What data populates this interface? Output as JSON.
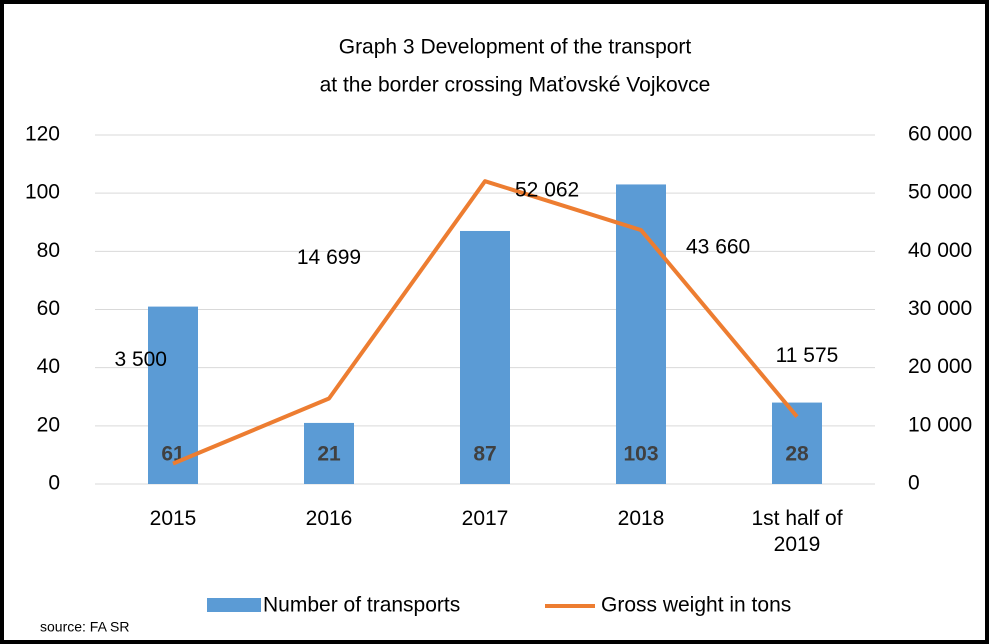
{
  "chart_data": {
    "type": "bar-line",
    "title": [
      "Graph  3 Development of the transport",
      "at the border crossing  Maťovské Vojkovce"
    ],
    "categories": [
      "2015",
      "2016",
      "2017",
      "2018",
      "1st half of 2019"
    ],
    "series": [
      {
        "name": "Number of transports",
        "color": "#5b9bd5",
        "type": "bar",
        "axis": "y",
        "values": [
          61,
          21,
          87,
          103,
          28
        ]
      },
      {
        "name": "Gross weight in tons",
        "color": "#ed7d31",
        "type": "line",
        "axis": "y2",
        "values": [
          3500,
          14699,
          52062,
          43660,
          11575
        ],
        "value_labels": [
          "3 500",
          "14 699",
          "52 062",
          "43 660",
          "11 575"
        ]
      }
    ],
    "ylim": [
      0,
      120
    ],
    "yticks": [
      0,
      20,
      40,
      60,
      80,
      100,
      120
    ],
    "y2lim": [
      0,
      60000
    ],
    "y2ticks": [
      0,
      {
        "value": 10000,
        "label": "10 000"
      },
      {
        "value": 20000,
        "label": "20 000"
      },
      {
        "value": 30000,
        "label": "30 000"
      },
      {
        "value": 40000,
        "label": "40 000"
      },
      {
        "value": 50000,
        "label": "50 000"
      },
      {
        "value": 60000,
        "label": "60 000"
      }
    ],
    "grid": true,
    "legend": "bottom",
    "source": "source: FA SR"
  }
}
